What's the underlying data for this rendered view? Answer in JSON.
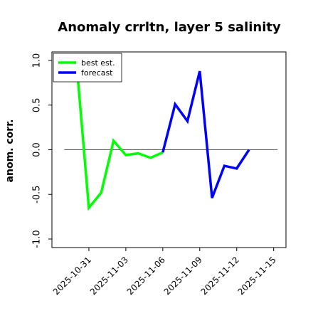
{
  "chart_data": {
    "type": "line",
    "title": "Anomaly crrltn, layer 5 salinity",
    "ylabel": "anom. corr.",
    "xlabel": "",
    "ylim": [
      -1.0,
      1.0
    ],
    "xlim": [
      "2025-10-28",
      "2025-11-16"
    ],
    "yticks": [
      -1.0,
      -0.5,
      0.0,
      0.5,
      1.0
    ],
    "ytick_labels": [
      "-1.0",
      "-0.5",
      "0.0",
      "0.5",
      "1.0"
    ],
    "xticks": [
      "2025-10-31",
      "2025-11-03",
      "2025-11-06",
      "2025-11-09",
      "2025-11-12",
      "2025-11-15"
    ],
    "xtick_labels": [
      "2025-10-31",
      "2025-11-03",
      "2025-11-06",
      "2025-11-09",
      "2025-11-12",
      "2025-11-15"
    ],
    "highlight_tick": "2025-11-06",
    "highlight_color": "#228B22",
    "grid": false,
    "legend_position": "upper-left",
    "reference_line": {
      "y": 0.0,
      "color": "#555555"
    },
    "series": [
      {
        "name": "best est.",
        "color": "#00ff00",
        "points": [
          [
            "2025-10-30",
            0.97
          ],
          [
            "2025-10-31",
            -0.65
          ],
          [
            "2025-11-01",
            -0.48
          ],
          [
            "2025-11-02",
            0.1
          ],
          [
            "2025-11-03",
            -0.06
          ],
          [
            "2025-11-04",
            -0.04
          ],
          [
            "2025-11-05",
            -0.09
          ],
          [
            "2025-11-06",
            -0.03
          ]
        ]
      },
      {
        "name": "forecast",
        "color": "#0000ff",
        "points": [
          [
            "2025-11-06",
            -0.03
          ],
          [
            "2025-11-07",
            0.51
          ],
          [
            "2025-11-08",
            0.32
          ],
          [
            "2025-11-09",
            0.88
          ],
          [
            "2025-11-10",
            -0.54
          ],
          [
            "2025-11-11",
            -0.18
          ],
          [
            "2025-11-12",
            -0.21
          ],
          [
            "2025-11-13",
            0.0
          ]
        ]
      }
    ]
  }
}
